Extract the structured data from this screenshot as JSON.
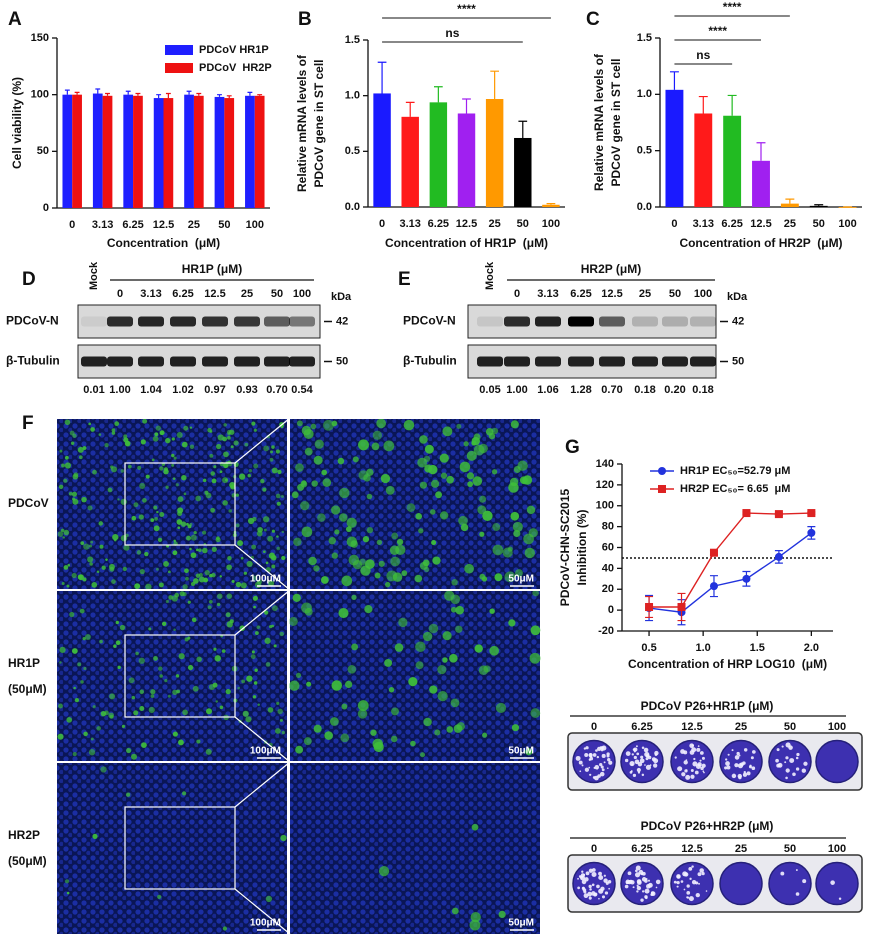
{
  "chart_data": [
    {
      "type": "bar",
      "panel_label": "A",
      "y_label": [
        "Cell viability (%)"
      ],
      "x_label": "Concentration  (μM)",
      "categories": [
        "0",
        "3.13",
        "6.25",
        "12.5",
        "25",
        "50",
        "100"
      ],
      "series": [
        {
          "name": "PDCoV HR1P",
          "color": "#1f1fff",
          "values": [
            100,
            101,
            100,
            97,
            100,
            98,
            99
          ],
          "errors": [
            4,
            4,
            3,
            3,
            3,
            2,
            3
          ]
        },
        {
          "name": "PDCoV  HR2P",
          "color": "#ee1111",
          "values": [
            100,
            99,
            99,
            97,
            99,
            97,
            99
          ],
          "errors": [
            2,
            2,
            2,
            4,
            2,
            2,
            1
          ]
        }
      ],
      "ylim": [
        0,
        150
      ],
      "yticks": [
        0,
        50,
        100,
        150
      ],
      "grid": false
    },
    {
      "type": "bar",
      "panel_label": "B",
      "y_label": [
        "Relative mRNA levels of",
        "PDCoV gene in ST cell"
      ],
      "x_label": "Concentration of HR1P  (μM)",
      "categories": [
        "0",
        "3.13",
        "6.25",
        "12.5",
        "25",
        "50",
        "100"
      ],
      "values": [
        1.02,
        0.81,
        0.94,
        0.84,
        0.97,
        0.62,
        0.02
      ],
      "errors": [
        0.28,
        0.13,
        0.14,
        0.13,
        0.25,
        0.15,
        0.01
      ],
      "colors": [
        "#1a1aff",
        "#ff1a1a",
        "#22bb22",
        "#a020f0",
        "#ff9900",
        "#000000",
        "#ff9900"
      ],
      "annotations": [
        {
          "text": "****",
          "from": "0",
          "to": "100"
        },
        {
          "text": "ns",
          "from": "0",
          "to": "50"
        }
      ],
      "ylim": [
        0,
        1.5
      ],
      "yticks": [
        {
          "value": 0,
          "label": "0.0"
        },
        0.5,
        {
          "value": 1,
          "label": "1.0"
        },
        1.5
      ],
      "grid": false
    },
    {
      "type": "bar",
      "panel_label": "C",
      "y_label": [
        "Relative mRNA levels of",
        "PDCoV gene in ST cell"
      ],
      "x_label": "Concentration of HR2P  (μM)",
      "categories": [
        "0",
        "3.13",
        "6.25",
        "12.5",
        "25",
        "50",
        "100"
      ],
      "values": [
        1.04,
        0.83,
        0.81,
        0.41,
        0.03,
        0.01,
        0
      ],
      "errors": [
        0.16,
        0.15,
        0.18,
        0.16,
        0.04,
        0.01,
        0
      ],
      "colors": [
        "#1a1aff",
        "#ff1a1a",
        "#22bb22",
        "#a020f0",
        "#ff9900",
        "#000000",
        "#ff9900"
      ],
      "annotations": [
        {
          "text": "****",
          "from": "0",
          "to": "25"
        },
        {
          "text": "****",
          "from": "0",
          "to": "12.5"
        },
        {
          "text": "ns",
          "from": "0",
          "to": "6.25"
        }
      ],
      "ylim": [
        0,
        1.5
      ],
      "yticks": [
        {
          "value": 0,
          "label": "0.0"
        },
        0.5,
        {
          "value": 1,
          "label": "1.0"
        },
        1.5
      ],
      "grid": false
    },
    {
      "type": "line",
      "panel_label": "G",
      "y_label": [
        "PDCoV-CHN-SC2015",
        "Inhibition (%)"
      ],
      "x_label": "Concentration of HRP LOG10  (μM)",
      "x": [
        0.5,
        0.8,
        1.1,
        1.4,
        1.7,
        2.0
      ],
      "series": [
        {
          "name": "HR1P EC₅₀=52.79 μM",
          "color": "#2233dd",
          "marker": "circle",
          "values": [
            2,
            -2,
            23,
            30,
            51,
            74
          ],
          "errors": [
            12,
            12,
            10,
            7,
            6,
            6
          ]
        },
        {
          "name": "HR2P EC₅₀= 6.65  μM",
          "color": "#dd2222",
          "marker": "square",
          "values": [
            3,
            3,
            55,
            93,
            92,
            93
          ],
          "errors": [
            10,
            13,
            2,
            1,
            1,
            1
          ]
        }
      ],
      "reference_line": 50,
      "xlim": [
        0.25,
        2.2
      ],
      "xticks": [
        0.5,
        {
          "value": 1,
          "label": "1.0"
        },
        1.5,
        {
          "value": 2,
          "label": "2.0"
        }
      ],
      "ylim": [
        -20,
        140
      ],
      "yticks": [
        -20,
        0,
        20,
        40,
        60,
        80,
        100,
        120,
        140
      ],
      "grid": false
    }
  ],
  "blots": [
    {
      "panel_label": "D",
      "mock": "Mock",
      "treatment": "HR1P (μM)",
      "lanes": [
        "0",
        "3.13",
        "6.25",
        "12.5",
        "25",
        "50",
        "100"
      ],
      "kda": "kDa",
      "rows": [
        {
          "name": "PDCoV-N",
          "size": "42"
        },
        {
          "name": "β-Tubulin",
          "size": "50"
        }
      ],
      "quantification": [
        "0.01",
        "1.00",
        "1.04",
        "1.02",
        "0.97",
        "0.93",
        "0.70",
        "0.54"
      ]
    },
    {
      "panel_label": "E",
      "mock": "Mock",
      "treatment": "HR2P (μM)",
      "lanes": [
        "0",
        "3.13",
        "6.25",
        "12.5",
        "25",
        "50",
        "100"
      ],
      "kda": "kDa",
      "rows": [
        {
          "name": "PDCoV-N",
          "size": "42"
        },
        {
          "name": "β-Tubulin",
          "size": "50"
        }
      ],
      "quantification": [
        "0.05",
        "1.00",
        "1.06",
        "1.28",
        "0.70",
        "0.18",
        "0.20",
        "0.18"
      ]
    }
  ],
  "micrographs": {
    "panel_label": "F",
    "rows": [
      {
        "label": [
          "PDCoV"
        ]
      },
      {
        "label": [
          "HR1P",
          "(50μM)"
        ]
      },
      {
        "label": [
          "HR2P",
          "(50μM)"
        ]
      }
    ],
    "scale_bars": [
      "100μM",
      "50μM"
    ]
  },
  "plaques": [
    {
      "title": "PDCoV P26+HR1P (μM)",
      "concentrations": [
        "0",
        "6.25",
        "12.5",
        "25",
        "50",
        "100"
      ]
    },
    {
      "title": "PDCoV P26+HR2P (μM)",
      "concentrations": [
        "0",
        "6.25",
        "12.5",
        "25",
        "50",
        "100"
      ]
    }
  ]
}
